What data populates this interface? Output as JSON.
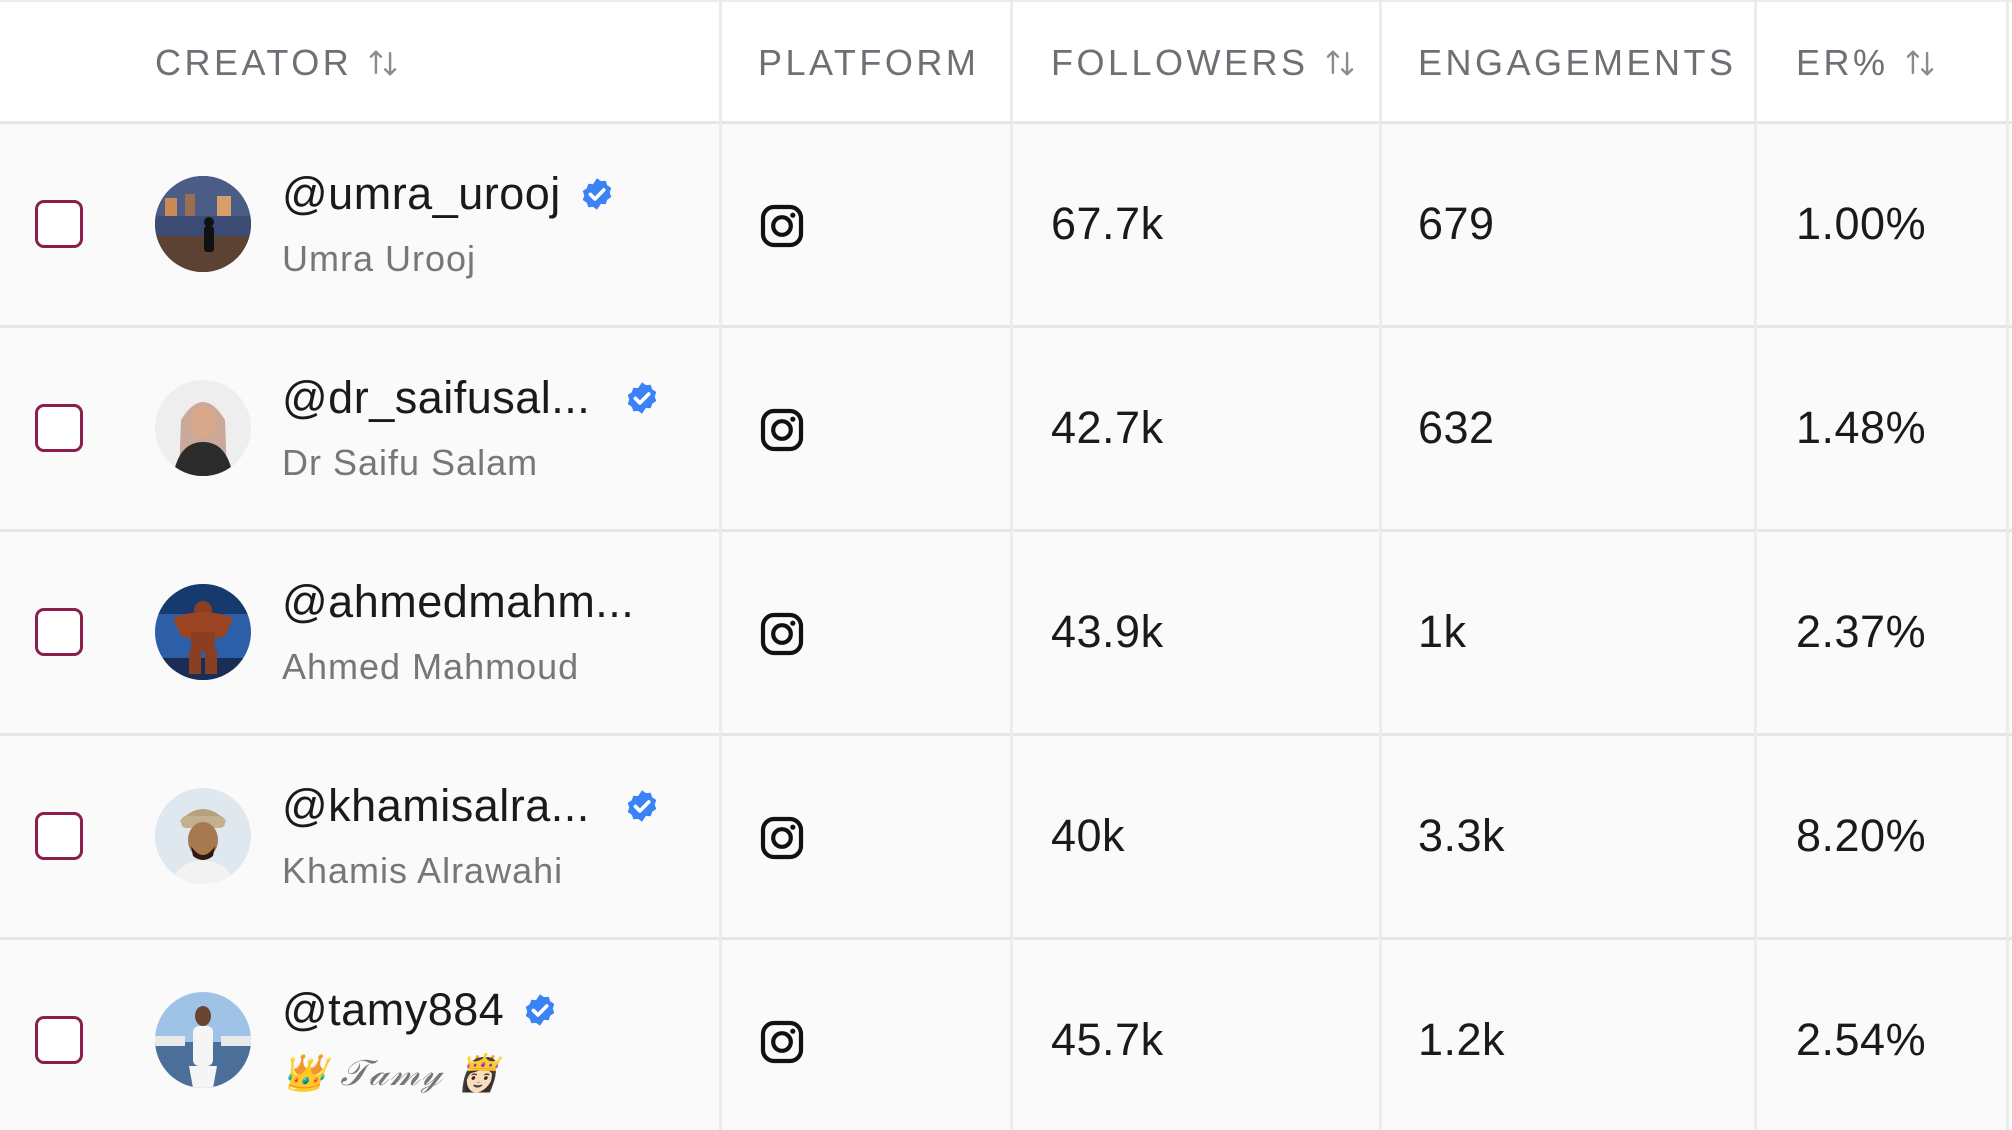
{
  "columns": {
    "creator": "CREATOR",
    "platform": "PLATFORM",
    "followers": "FOLLOWERS",
    "engagements": "ENGAGEMENTS",
    "er": "ER%"
  },
  "colors": {
    "checkbox_border": "#8a1e4c",
    "verified_badge": "#3b82f6",
    "divider": "#ececee"
  },
  "rows": [
    {
      "handle": "@umra_urooj",
      "name": "Umra Urooj",
      "verified": true,
      "platform": "instagram-icon",
      "followers": "67.7k",
      "engagements": "679",
      "er": "1.00%"
    },
    {
      "handle": "@dr_saifusal...",
      "name": "Dr Saifu Salam",
      "verified": true,
      "platform": "instagram-icon",
      "followers": "42.7k",
      "engagements": "632",
      "er": "1.48%"
    },
    {
      "handle": "@ahmedmahm...",
      "name": "Ahmed Mahmoud",
      "verified": false,
      "platform": "instagram-icon",
      "followers": "43.9k",
      "engagements": "1k",
      "er": "2.37%"
    },
    {
      "handle": "@khamisalra...",
      "name": "Khamis Alrawahi",
      "verified": true,
      "platform": "instagram-icon",
      "followers": "40k",
      "engagements": "3.3k",
      "er": "8.20%"
    },
    {
      "handle": "@tamy884",
      "name": "👑 𝒯𝒶𝓂𝓎 👸🏻",
      "verified": true,
      "platform": "instagram-icon",
      "followers": "45.7k",
      "engagements": "1.2k",
      "er": "2.54%"
    }
  ]
}
